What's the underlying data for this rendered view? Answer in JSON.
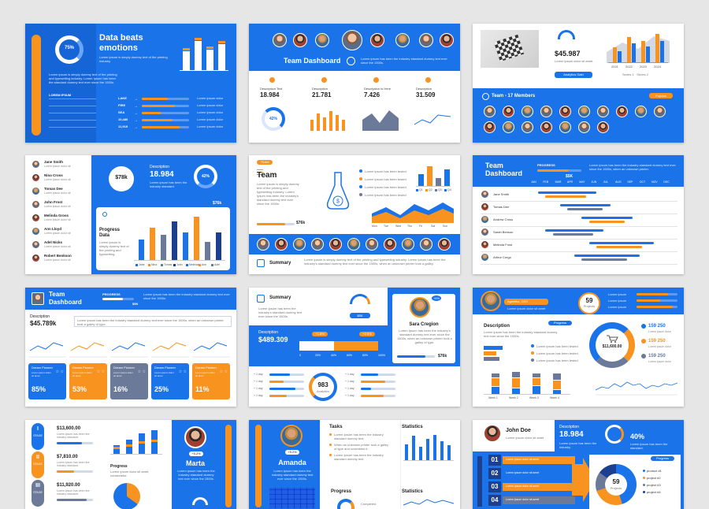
{
  "colors": {
    "blue": "#1a73e8",
    "orange": "#f7931e",
    "navy": "#1c3f8f",
    "gray": "#6b7a99"
  },
  "s1": {
    "title_l1": "Data beats",
    "title_l2": "emotions",
    "ring_value": "75%",
    "bars": [
      0.55,
      0.85,
      0.6,
      0.75
    ],
    "rows": [
      {
        "label": "LAKE",
        "fill": 0.55
      },
      {
        "label": "FIRE",
        "fill": 0.7
      },
      {
        "label": "SEA",
        "fill": 0.4
      },
      {
        "label": "10,480",
        "fill": 0.65
      },
      {
        "label": "11,919",
        "fill": 0.8
      }
    ]
  },
  "s2": {
    "title": "Team Dashboard",
    "stats": [
      {
        "label": "Description Text",
        "value": "18.984"
      },
      {
        "label": "Description",
        "value": "21.781"
      },
      {
        "label": "Description Is Here",
        "value": "7.426"
      },
      {
        "label": "Description",
        "value": "31.509"
      }
    ],
    "donut": "42%",
    "bars": [
      0.5,
      0.8,
      0.6,
      0.9,
      0.7,
      0.5
    ]
  },
  "s3": {
    "value": "$45.987",
    "button": "Analytics Gain",
    "team_title": "Team - 17 Members",
    "team_button": "Popular",
    "years": [
      "2021",
      "2022",
      "2023",
      "2024"
    ],
    "bars": [
      0.5,
      0.85,
      0.7,
      0.95
    ],
    "legend": "Series 1 · Series 2"
  },
  "s4": {
    "names": [
      "Jane Smith",
      "Nina Cross",
      "Tomas Dee",
      "John Frost",
      "Melinda Gross",
      "Ann Lloyd",
      "Adel Nicks",
      "Robert Benkson"
    ],
    "gauge": "$78k",
    "desc": "Description",
    "value": "18.984",
    "ring": "42%",
    "price": "$76k",
    "progress_l1": "Progress",
    "progress_l2": "Data",
    "bars": [
      0.45,
      0.7,
      0.55,
      0.85,
      0.6,
      0.95,
      0.4,
      0.6
    ],
    "legend": [
      "Jane",
      "Nina",
      "Tomas",
      "John",
      "Melinda",
      "Ann",
      "Adel"
    ]
  },
  "s5": {
    "tag": "TEAM",
    "title": "Team",
    "price": "$76k",
    "summary": "Summary",
    "days": [
      "Mon",
      "Tue",
      "Wed",
      "Thu",
      "Fri",
      "Sat",
      "Sun"
    ],
    "bars": [
      0.5,
      0.85,
      0.35,
      0.7
    ],
    "legend": [
      "Q1",
      "Q2",
      "Q3",
      "Q4"
    ]
  },
  "s6": {
    "title_l1": "Team",
    "title_l2": "Dashboard",
    "tag": "PROGRESS",
    "value": "$5K",
    "months": [
      "JAN",
      "FEB",
      "MAR",
      "APR",
      "MAY",
      "JUN",
      "JUL",
      "AUG",
      "SEP",
      "OCT",
      "NOV",
      "DEC"
    ],
    "names": [
      "Jane Smith",
      "Tomas Dee",
      "Andrew Cross",
      "Sarah Benson",
      "Melinda Frost",
      "Arthur Crego"
    ],
    "gantt": [
      [
        0.05,
        0.45
      ],
      [
        0.2,
        0.55
      ],
      [
        0.35,
        0.7
      ],
      [
        0.1,
        0.5
      ],
      [
        0.4,
        0.85
      ],
      [
        0.3,
        0.75
      ]
    ]
  },
  "s7": {
    "title_l1": "Team",
    "title_l2": "Dashboard",
    "tag": "PROGRESS",
    "tag_val": "$5K",
    "desc": "Description",
    "value": "$45.789k",
    "cards": [
      {
        "label": "Dream Pioneer",
        "pct": "85%",
        "color": "#1a73e8"
      },
      {
        "label": "Dream Pioneer",
        "pct": "53%",
        "color": "#f7931e"
      },
      {
        "label": "Dream Pioneer",
        "pct": "16%",
        "color": "#6b7a99"
      },
      {
        "label": "Dream Pioneer",
        "pct": "25%",
        "color": "#1a73e8"
      },
      {
        "label": "Dream Pioneer",
        "pct": "11%",
        "color": "#f7931e"
      }
    ]
  },
  "s8": {
    "title": "Summary",
    "gauge_val": "$5K",
    "name": "Sara Cregion",
    "badge": "+5%",
    "desc": "Description",
    "value": "$489.309",
    "price": "$76k",
    "bar_l": "+1.8%",
    "bar_r": "+2.5%",
    "ticks": [
      "0",
      "20%",
      "40%",
      "60%",
      "80%",
      "100%"
    ],
    "center": "983",
    "center_sub": "Analytics"
  },
  "s9": {
    "person": "Agnelika, CEO",
    "circle_val": "59",
    "circle_sub": "Projects",
    "desc": "Description",
    "tag": "Progress",
    "donut_val": "$11,600.00",
    "stats": [
      "159 250",
      "159 250",
      "159 250"
    ],
    "weeks": [
      "Week 1",
      "Week 2",
      "Week 3",
      "Week 4"
    ]
  },
  "s10": {
    "stages": [
      {
        "roman": "I",
        "label": "STAGE",
        "value": "$13,600.00"
      },
      {
        "roman": "II",
        "label": "STAGE",
        "value": "$7,810.00"
      },
      {
        "roman": "III",
        "label": "STAGE",
        "value": "$11,920.00"
      }
    ],
    "progress": "Progress",
    "badge": "+5.2%",
    "name": "Marta",
    "bars": [
      0.35,
      0.55,
      0.8,
      0.95
    ]
  },
  "s11": {
    "badge": "+5.2%",
    "name": "Amanda",
    "tasks": "Tasks",
    "statistics": "Statistics",
    "progress": "Progress",
    "statistics2": "Statistics",
    "completed": "Completed",
    "bars": [
      0.6,
      0.9,
      0.5,
      0.8,
      0.95,
      0.7,
      0.55
    ]
  },
  "s12": {
    "name": "John Doe",
    "desc": "Description",
    "value": "18.984",
    "pct": "40%",
    "tag": "Progress",
    "pie_val": "59",
    "pie_sub": "Projects",
    "steps": [
      "01",
      "02",
      "03",
      "04"
    ],
    "legend": [
      "product #1",
      "project #2",
      "project #3",
      "project #4"
    ]
  }
}
